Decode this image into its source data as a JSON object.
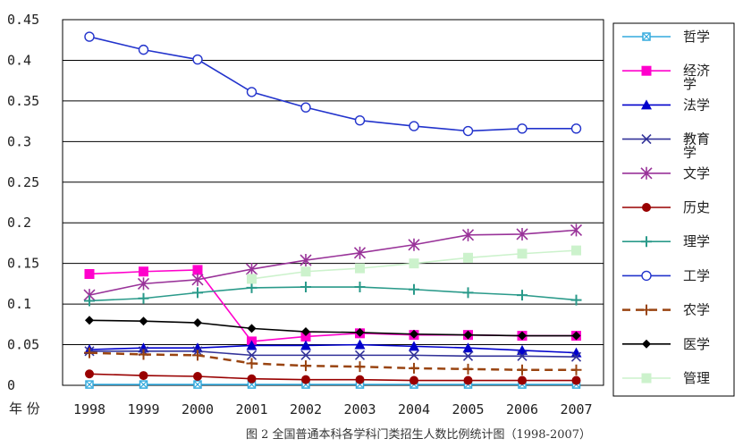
{
  "chart_data": {
    "type": "line",
    "x": [
      "1998",
      "1999",
      "2000",
      "2001",
      "2002",
      "2003",
      "2004",
      "2005",
      "2006",
      "2007"
    ],
    "xlabel": "年 份",
    "ylim": [
      0,
      0.45
    ],
    "yticks": [
      "0",
      "0.05",
      "0.1",
      "0.15",
      "0.2",
      "0.25",
      "0.3",
      "0.35",
      "0.4",
      "0.45"
    ],
    "grid": "horizontal",
    "legend_position": "right",
    "caption": "图 2 全国普通本科各学科门类招生人数比例统计图（1998-2007）",
    "series": [
      {
        "name": "哲学",
        "color": "#33aadd",
        "marker": "square-x",
        "dash": "solid",
        "values": [
          0.001,
          0.001,
          0.001,
          0.001,
          0.001,
          0.001,
          0.001,
          0.001,
          0.001,
          0.001
        ]
      },
      {
        "name": "经济学",
        "color": "#ff00cc",
        "marker": "square",
        "dash": "solid",
        "values": [
          0.137,
          0.14,
          0.142,
          0.054,
          0.06,
          0.064,
          0.062,
          0.062,
          0.061,
          0.061
        ]
      },
      {
        "name": "法学",
        "color": "#0000cc",
        "marker": "triangle",
        "dash": "solid",
        "values": [
          0.044,
          0.046,
          0.046,
          0.049,
          0.049,
          0.05,
          0.048,
          0.046,
          0.043,
          0.04
        ]
      },
      {
        "name": "教育学",
        "color": "#333399",
        "marker": "x",
        "dash": "solid",
        "values": [
          0.042,
          0.042,
          0.042,
          0.037,
          0.037,
          0.037,
          0.037,
          0.036,
          0.036,
          0.035
        ]
      },
      {
        "name": "文学",
        "color": "#993399",
        "marker": "star",
        "dash": "solid",
        "values": [
          0.111,
          0.125,
          0.13,
          0.143,
          0.154,
          0.163,
          0.173,
          0.185,
          0.186,
          0.191
        ]
      },
      {
        "name": "历史",
        "color": "#990000",
        "marker": "circle-filled",
        "dash": "solid",
        "values": [
          0.014,
          0.012,
          0.011,
          0.008,
          0.007,
          0.007,
          0.006,
          0.006,
          0.006,
          0.006
        ]
      },
      {
        "name": "理学",
        "color": "#2a9a8a",
        "marker": "plus",
        "dash": "solid",
        "values": [
          0.104,
          0.107,
          0.114,
          0.12,
          0.121,
          0.121,
          0.118,
          0.114,
          0.111,
          0.105
        ]
      },
      {
        "name": "工学",
        "color": "#2233cc",
        "marker": "circle-open",
        "dash": "solid",
        "values": [
          0.429,
          0.413,
          0.401,
          0.361,
          0.342,
          0.326,
          0.319,
          0.313,
          0.316,
          0.316
        ]
      },
      {
        "name": "农学",
        "color": "#994411",
        "marker": "plus",
        "dash": "dashed",
        "values": [
          0.04,
          0.038,
          0.037,
          0.027,
          0.024,
          0.023,
          0.021,
          0.02,
          0.019,
          0.019
        ]
      },
      {
        "name": "医学",
        "color": "#000000",
        "marker": "diamond",
        "dash": "solid",
        "values": [
          0.08,
          0.079,
          0.077,
          0.07,
          0.066,
          0.065,
          0.063,
          0.062,
          0.061,
          0.061
        ]
      },
      {
        "name": "管理",
        "color": "#ccf2cc",
        "marker": "square",
        "dash": "solid",
        "values": [
          null,
          null,
          null,
          0.131,
          0.14,
          0.144,
          0.15,
          0.157,
          0.162,
          0.166
        ]
      }
    ]
  }
}
